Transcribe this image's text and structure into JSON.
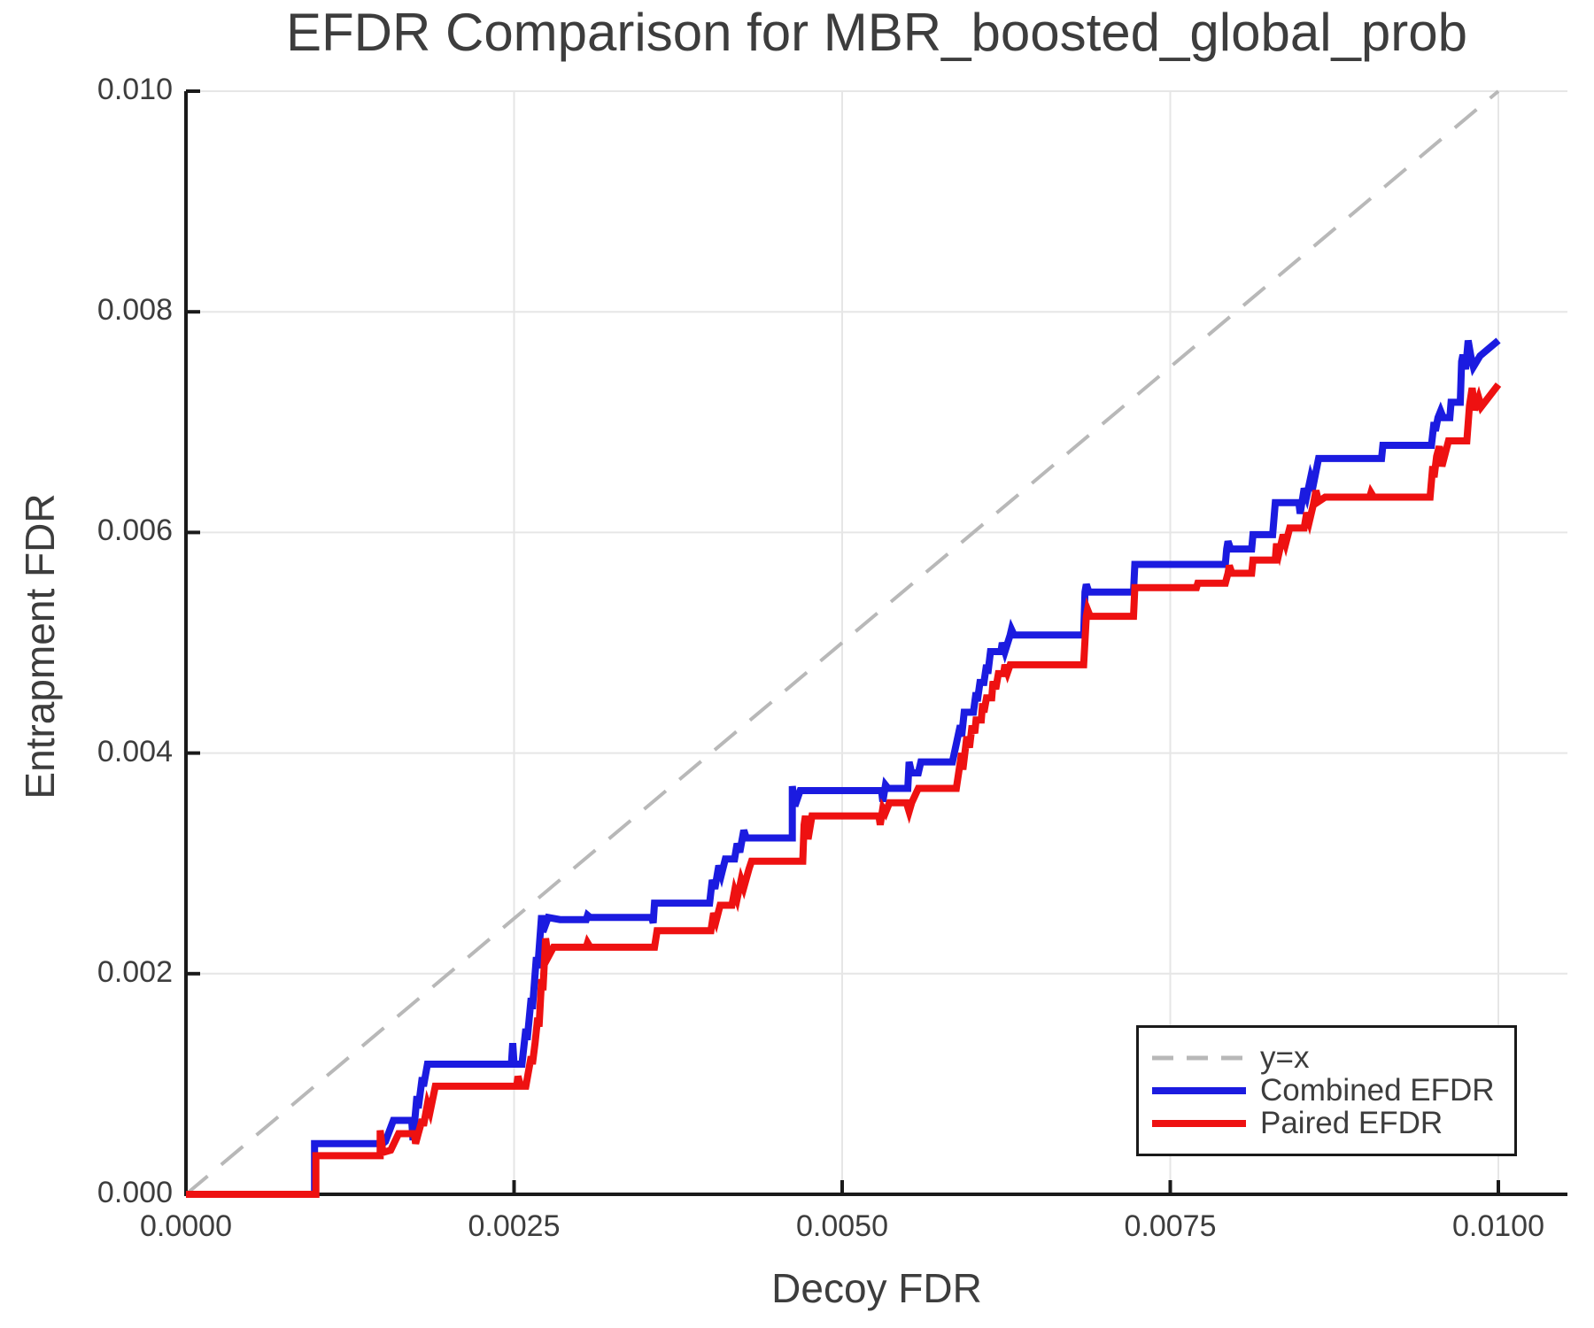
{
  "title": "EFDR Comparison for MBR_boosted_global_prob",
  "chart_data": {
    "type": "line",
    "title": "EFDR Comparison for MBR_boosted_global_prob",
    "xlabel": "Decoy FDR",
    "ylabel": "Entrapment FDR",
    "xlim": [
      0.0,
      0.01053
    ],
    "ylim": [
      0.0,
      0.01
    ],
    "grid": true,
    "legend_position": "bottom-right",
    "x_ticks": [
      0.0,
      0.0025,
      0.005,
      0.0075,
      0.01
    ],
    "x_tick_labels": [
      "0.0000",
      "0.0025",
      "0.0050",
      "0.0075",
      "0.0100"
    ],
    "y_ticks": [
      0.0,
      0.002,
      0.004,
      0.006,
      0.008,
      0.01
    ],
    "y_tick_labels": [
      "0.000",
      "0.002",
      "0.004",
      "0.006",
      "0.008",
      "0.010"
    ],
    "grid_color": "#e6e6e6",
    "axis_color": "#1a1a1a",
    "reference_line": {
      "label": "y=x",
      "style": "dashed",
      "color": "#b8b8b8",
      "from": [
        0.0,
        0.0
      ],
      "to": [
        0.01,
        0.01
      ]
    },
    "series": [
      {
        "name": "Combined EFDR",
        "color": "#1b1be0",
        "points": [
          [
            0.0,
            0.0
          ],
          [
            0.00098,
            0.0
          ],
          [
            0.00098,
            0.00046
          ],
          [
            0.0015,
            0.00046
          ],
          [
            0.00152,
            0.00048
          ],
          [
            0.00158,
            0.00067
          ],
          [
            0.00172,
            0.00067
          ],
          [
            0.00173,
            0.00049
          ],
          [
            0.00176,
            0.00089
          ],
          [
            0.00177,
            0.00078
          ],
          [
            0.0018,
            0.00106
          ],
          [
            0.00181,
            0.00098
          ],
          [
            0.00184,
            0.00118
          ],
          [
            0.00248,
            0.00118
          ],
          [
            0.00249,
            0.00137
          ],
          [
            0.0025,
            0.00118
          ],
          [
            0.00256,
            0.00118
          ],
          [
            0.00259,
            0.0015
          ],
          [
            0.0026,
            0.0014
          ],
          [
            0.00263,
            0.00178
          ],
          [
            0.00264,
            0.00168
          ],
          [
            0.00267,
            0.00215
          ],
          [
            0.00268,
            0.00205
          ],
          [
            0.00271,
            0.00253
          ],
          [
            0.00272,
            0.00238
          ],
          [
            0.00276,
            0.00251
          ],
          [
            0.00285,
            0.00249
          ],
          [
            0.00305,
            0.00249
          ],
          [
            0.00306,
            0.00253
          ],
          [
            0.00308,
            0.00251
          ],
          [
            0.00355,
            0.00251
          ],
          [
            0.00356,
            0.00246
          ],
          [
            0.00357,
            0.00264
          ],
          [
            0.00399,
            0.00264
          ],
          [
            0.00401,
            0.00285
          ],
          [
            0.00403,
            0.00277
          ],
          [
            0.00406,
            0.00298
          ],
          [
            0.00408,
            0.0029
          ],
          [
            0.00411,
            0.00304
          ],
          [
            0.00418,
            0.00304
          ],
          [
            0.0042,
            0.00318
          ],
          [
            0.00422,
            0.0031
          ],
          [
            0.00425,
            0.0033
          ],
          [
            0.00427,
            0.00323
          ],
          [
            0.00462,
            0.00323
          ],
          [
            0.00462,
            0.0037
          ],
          [
            0.00464,
            0.00352
          ],
          [
            0.00468,
            0.00366
          ],
          [
            0.0053,
            0.00366
          ],
          [
            0.00531,
            0.00356
          ],
          [
            0.00533,
            0.00371
          ],
          [
            0.00535,
            0.00368
          ],
          [
            0.0055,
            0.00368
          ],
          [
            0.00551,
            0.00392
          ],
          [
            0.00553,
            0.00382
          ],
          [
            0.00558,
            0.00382
          ],
          [
            0.0056,
            0.00392
          ],
          [
            0.00584,
            0.00392
          ],
          [
            0.0059,
            0.00425
          ],
          [
            0.00591,
            0.00415
          ],
          [
            0.00593,
            0.00437
          ],
          [
            0.006,
            0.00437
          ],
          [
            0.00602,
            0.00455
          ],
          [
            0.00603,
            0.00447
          ],
          [
            0.00605,
            0.00464
          ],
          [
            0.00608,
            0.00464
          ],
          [
            0.0061,
            0.0048
          ],
          [
            0.00611,
            0.00472
          ],
          [
            0.00613,
            0.00492
          ],
          [
            0.00621,
            0.00492
          ],
          [
            0.00622,
            0.005
          ],
          [
            0.00624,
            0.00492
          ],
          [
            0.00628,
            0.00507
          ],
          [
            0.00629,
            0.00512
          ],
          [
            0.00631,
            0.00507
          ],
          [
            0.00684,
            0.00507
          ],
          [
            0.00685,
            0.00546
          ],
          [
            0.00686,
            0.00553
          ],
          [
            0.00688,
            0.00546
          ],
          [
            0.00722,
            0.00546
          ],
          [
            0.00723,
            0.00571
          ],
          [
            0.00792,
            0.00571
          ],
          [
            0.00793,
            0.00585
          ],
          [
            0.00794,
            0.00592
          ],
          [
            0.00796,
            0.00585
          ],
          [
            0.00812,
            0.00585
          ],
          [
            0.00813,
            0.00598
          ],
          [
            0.00828,
            0.00598
          ],
          [
            0.0083,
            0.00627
          ],
          [
            0.00848,
            0.00627
          ],
          [
            0.00849,
            0.00617
          ],
          [
            0.00852,
            0.0064
          ],
          [
            0.00854,
            0.00633
          ],
          [
            0.00857,
            0.0065
          ],
          [
            0.00859,
            0.00643
          ],
          [
            0.00863,
            0.00667
          ],
          [
            0.00911,
            0.00667
          ],
          [
            0.00912,
            0.00679
          ],
          [
            0.00949,
            0.00679
          ],
          [
            0.00951,
            0.007
          ],
          [
            0.00952,
            0.00692
          ],
          [
            0.00954,
            0.00704
          ],
          [
            0.00956,
            0.0071
          ],
          [
            0.00958,
            0.00704
          ],
          [
            0.00963,
            0.00704
          ],
          [
            0.00964,
            0.00718
          ],
          [
            0.00971,
            0.00718
          ],
          [
            0.00972,
            0.00755
          ],
          [
            0.00973,
            0.00761
          ],
          [
            0.00975,
            0.00748
          ],
          [
            0.00977,
            0.00774
          ],
          [
            0.00979,
            0.0076
          ],
          [
            0.00981,
            0.0075
          ],
          [
            0.00986,
            0.0076
          ],
          [
            0.01,
            0.00774
          ]
        ]
      },
      {
        "name": "Paired EFDR",
        "color": "#ee1111",
        "points": [
          [
            0.0,
            0.0
          ],
          [
            0.00099,
            0.0
          ],
          [
            0.00099,
            0.00035
          ],
          [
            0.00148,
            0.00035
          ],
          [
            0.00148,
            0.00058
          ],
          [
            0.0015,
            0.00038
          ],
          [
            0.00156,
            0.0004
          ],
          [
            0.00162,
            0.00055
          ],
          [
            0.00174,
            0.00055
          ],
          [
            0.00175,
            0.00046
          ],
          [
            0.00177,
            0.00055
          ],
          [
            0.0018,
            0.00068
          ],
          [
            0.00181,
            0.00062
          ],
          [
            0.00184,
            0.00082
          ],
          [
            0.00186,
            0.00075
          ],
          [
            0.0019,
            0.00098
          ],
          [
            0.00252,
            0.00098
          ],
          [
            0.00253,
            0.00107
          ],
          [
            0.00255,
            0.00098
          ],
          [
            0.00259,
            0.00098
          ],
          [
            0.00263,
            0.00125
          ],
          [
            0.00264,
            0.00118
          ],
          [
            0.00266,
            0.00137
          ],
          [
            0.00268,
            0.0016
          ],
          [
            0.00269,
            0.00152
          ],
          [
            0.00271,
            0.00195
          ],
          [
            0.00272,
            0.00185
          ],
          [
            0.00274,
            0.00232
          ],
          [
            0.00276,
            0.00215
          ],
          [
            0.0028,
            0.00224
          ],
          [
            0.00305,
            0.00224
          ],
          [
            0.00306,
            0.00228
          ],
          [
            0.00308,
            0.00224
          ],
          [
            0.00357,
            0.00224
          ],
          [
            0.00359,
            0.00239
          ],
          [
            0.004,
            0.00239
          ],
          [
            0.00402,
            0.00255
          ],
          [
            0.00404,
            0.00248
          ],
          [
            0.00407,
            0.00262
          ],
          [
            0.00416,
            0.00262
          ],
          [
            0.00418,
            0.00275
          ],
          [
            0.0042,
            0.00268
          ],
          [
            0.00423,
            0.00285
          ],
          [
            0.00425,
            0.00278
          ],
          [
            0.00429,
            0.00295
          ],
          [
            0.00431,
            0.00302
          ],
          [
            0.0047,
            0.00302
          ],
          [
            0.00471,
            0.00335
          ],
          [
            0.00472,
            0.00343
          ],
          [
            0.00474,
            0.00322
          ],
          [
            0.00477,
            0.00343
          ],
          [
            0.00528,
            0.00343
          ],
          [
            0.00529,
            0.00335
          ],
          [
            0.00531,
            0.0035
          ],
          [
            0.00533,
            0.00346
          ],
          [
            0.00536,
            0.00355
          ],
          [
            0.00549,
            0.00355
          ],
          [
            0.00551,
            0.00347
          ],
          [
            0.00553,
            0.00355
          ],
          [
            0.00558,
            0.00368
          ],
          [
            0.00587,
            0.00368
          ],
          [
            0.00591,
            0.004
          ],
          [
            0.00592,
            0.00385
          ],
          [
            0.00595,
            0.00415
          ],
          [
            0.00597,
            0.00405
          ],
          [
            0.00599,
            0.00425
          ],
          [
            0.00601,
            0.00418
          ],
          [
            0.00602,
            0.0043
          ],
          [
            0.00606,
            0.0043
          ],
          [
            0.00607,
            0.00445
          ],
          [
            0.00608,
            0.00437
          ],
          [
            0.0061,
            0.0045
          ],
          [
            0.00614,
            0.0045
          ],
          [
            0.00615,
            0.00465
          ],
          [
            0.00617,
            0.00458
          ],
          [
            0.00619,
            0.00472
          ],
          [
            0.00623,
            0.00472
          ],
          [
            0.00624,
            0.0048
          ],
          [
            0.00626,
            0.00473
          ],
          [
            0.00628,
            0.0048
          ],
          [
            0.00684,
            0.0048
          ],
          [
            0.00686,
            0.00524
          ],
          [
            0.00687,
            0.0053
          ],
          [
            0.00689,
            0.00524
          ],
          [
            0.00722,
            0.00524
          ],
          [
            0.00723,
            0.0055
          ],
          [
            0.0077,
            0.0055
          ],
          [
            0.00771,
            0.00554
          ],
          [
            0.00792,
            0.00554
          ],
          [
            0.00794,
            0.00563
          ],
          [
            0.00795,
            0.0057
          ],
          [
            0.00797,
            0.00563
          ],
          [
            0.00812,
            0.00563
          ],
          [
            0.00813,
            0.00575
          ],
          [
            0.0083,
            0.00575
          ],
          [
            0.00831,
            0.0059
          ],
          [
            0.00833,
            0.00582
          ],
          [
            0.00836,
            0.00598
          ],
          [
            0.00838,
            0.0059
          ],
          [
            0.00841,
            0.00604
          ],
          [
            0.00852,
            0.00604
          ],
          [
            0.00854,
            0.00618
          ],
          [
            0.00856,
            0.0061
          ],
          [
            0.00859,
            0.00625
          ],
          [
            0.00861,
            0.00638
          ],
          [
            0.00863,
            0.00628
          ],
          [
            0.00868,
            0.00632
          ],
          [
            0.00902,
            0.00632
          ],
          [
            0.00903,
            0.00636
          ],
          [
            0.00905,
            0.00632
          ],
          [
            0.00948,
            0.00632
          ],
          [
            0.0095,
            0.0066
          ],
          [
            0.00951,
            0.0065
          ],
          [
            0.00953,
            0.00669
          ],
          [
            0.00955,
            0.00678
          ],
          [
            0.00957,
            0.0066
          ],
          [
            0.00962,
            0.00683
          ],
          [
            0.00976,
            0.00683
          ],
          [
            0.00978,
            0.00715
          ],
          [
            0.0098,
            0.00731
          ],
          [
            0.00982,
            0.00711
          ],
          [
            0.00985,
            0.00722
          ],
          [
            0.00987,
            0.00714
          ],
          [
            0.01,
            0.00734
          ]
        ]
      }
    ]
  },
  "legend": {
    "items": [
      {
        "label": "y=x"
      },
      {
        "label": "Combined EFDR"
      },
      {
        "label": "Paired EFDR"
      }
    ]
  }
}
